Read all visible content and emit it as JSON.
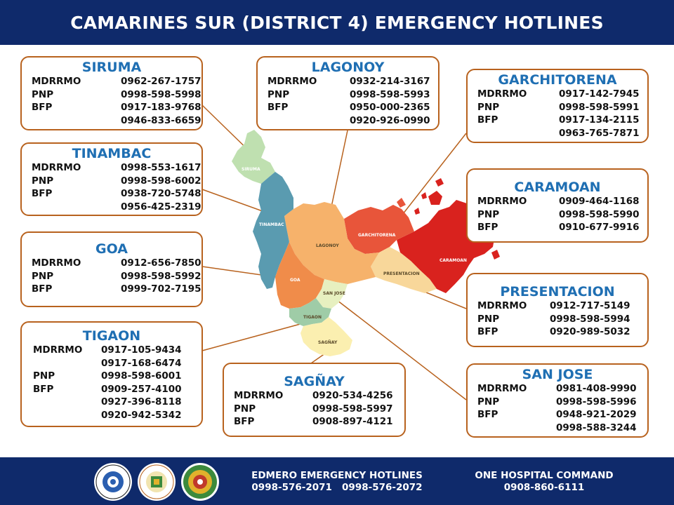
{
  "header": {
    "title": "CAMARINES SUR (DISTRICT 4) EMERGENCY HOTLINES"
  },
  "map_labels": {
    "siruma": "SIRUMA",
    "tinambac": "TINAMBAC",
    "lagonoy": "LAGONOY",
    "garchitorena": "GARCHITORENA",
    "caramoan": "CARAMOAN",
    "presentacion": "PRESENTACION",
    "goa": "GOA",
    "san_jose": "SAN JOSE",
    "tigaon": "TIGAON",
    "sagnay": "SAGÑAY"
  },
  "colors": {
    "header_bg": "#0f2a6b",
    "card_border": "#b8621e",
    "town_name": "#1f6fb3",
    "siruma": "#bfe0b0",
    "tinambac": "#5a9bb0",
    "lagonoy": "#f6b26b",
    "garchitorena": "#e8553a",
    "caramoan": "#d9221e",
    "presentacion": "#f8d79a",
    "goa": "#f08c4a",
    "san_jose": "#e7f0c0",
    "tigaon": "#9fcca7",
    "sagnay": "#fbefb0"
  },
  "cards": {
    "siruma": {
      "name": "SIRUMA",
      "rows": [
        {
          "label": "MDRRMO",
          "number": "0962-267-1757"
        },
        {
          "label": "PNP",
          "number": "0998-598-5998"
        },
        {
          "label": "BFP",
          "number": "0917-183-9768"
        },
        {
          "label": "",
          "number": "0946-833-6659"
        }
      ]
    },
    "tinambac": {
      "name": "TINAMBAC",
      "rows": [
        {
          "label": "MDRRMO",
          "number": "0998-553-1617"
        },
        {
          "label": "PNP",
          "number": "0998-598-6002"
        },
        {
          "label": "BFP",
          "number": "0938-720-5748"
        },
        {
          "label": "",
          "number": "0956-425-2319"
        }
      ]
    },
    "goa": {
      "name": "GOA",
      "rows": [
        {
          "label": "MDRRMO",
          "number": "0912-656-7850"
        },
        {
          "label": "PNP",
          "number": "0998-598-5992"
        },
        {
          "label": "BFP",
          "number": "0999-702-7195"
        }
      ]
    },
    "tigaon": {
      "name": "TIGAON",
      "rows": [
        {
          "label": "MDRRMO",
          "number": "0917-105-9434"
        },
        {
          "label": "",
          "number": "0917-168-6474"
        },
        {
          "label": "PNP",
          "number": "0998-598-6001"
        },
        {
          "label": "BFP",
          "number": "0909-257-4100"
        },
        {
          "label": "",
          "number": "0927-396-8118"
        },
        {
          "label": "",
          "number": "0920-942-5342"
        }
      ]
    },
    "lagonoy": {
      "name": "LAGONOY",
      "rows": [
        {
          "label": "MDRRMO",
          "number": "0932-214-3167"
        },
        {
          "label": "PNP",
          "number": "0998-598-5993"
        },
        {
          "label": "BFP",
          "number": "0950-000-2365"
        },
        {
          "label": "",
          "number": "0920-926-0990"
        }
      ]
    },
    "sagnay": {
      "name": "SAGÑAY",
      "rows": [
        {
          "label": "MDRRMO",
          "number": "0920-534-4256"
        },
        {
          "label": "PNP",
          "number": "0998-598-5997"
        },
        {
          "label": "BFP",
          "number": "0908-897-4121"
        }
      ]
    },
    "garchitorena": {
      "name": "GARCHITORENA",
      "rows": [
        {
          "label": "MDRRMO",
          "number": "0917-142-7945"
        },
        {
          "label": "PNP",
          "number": "0998-598-5991"
        },
        {
          "label": "BFP",
          "number": "0917-134-2115"
        },
        {
          "label": "",
          "number": "0963-765-7871"
        }
      ]
    },
    "caramoan": {
      "name": "CARAMOAN",
      "rows": [
        {
          "label": "MDRRMO",
          "number": "0909-464-1168"
        },
        {
          "label": "PNP",
          "number": "0998-598-5990"
        },
        {
          "label": "BFP",
          "number": "0910-677-9916"
        }
      ]
    },
    "presentacion": {
      "name": "PRESENTACION",
      "rows": [
        {
          "label": "MDRRMO",
          "number": "0912-717-5149"
        },
        {
          "label": "PNP",
          "number": "0998-598-5994"
        },
        {
          "label": "BFP",
          "number": "0920-989-5032"
        }
      ]
    },
    "san_jose": {
      "name": "SAN JOSE",
      "rows": [
        {
          "label": "MDRRMO",
          "number": "0981-408-9990"
        },
        {
          "label": "PNP",
          "number": "0998-598-5996"
        },
        {
          "label": "BFP",
          "number": "0948-921-2029"
        },
        {
          "label": "",
          "number": "0998-588-3244"
        }
      ]
    }
  },
  "footer": {
    "edmero_title": "EDMERO EMERGENCY HOTLINES",
    "edmero_numbers": "0998-576-2071   0998-576-2072",
    "hospital_title": "ONE HOSPITAL COMMAND",
    "hospital_number": "0908-860-6111",
    "seal_icons": [
      "province-seal-icon",
      "province-official-seal-icon",
      "disaster-management-seal-icon"
    ]
  }
}
